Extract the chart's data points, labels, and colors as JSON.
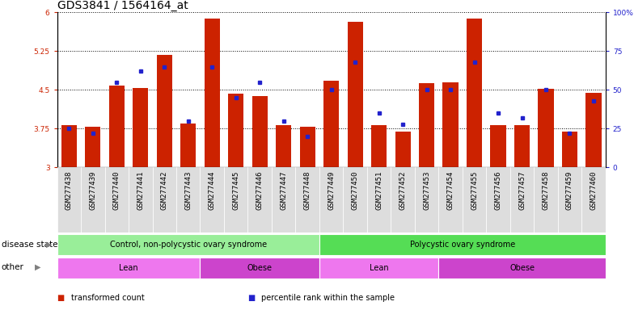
{
  "title": "GDS3841 / 1564164_at",
  "samples": [
    "GSM277438",
    "GSM277439",
    "GSM277440",
    "GSM277441",
    "GSM277442",
    "GSM277443",
    "GSM277444",
    "GSM277445",
    "GSM277446",
    "GSM277447",
    "GSM277448",
    "GSM277449",
    "GSM277450",
    "GSM277451",
    "GSM277452",
    "GSM277453",
    "GSM277454",
    "GSM277455",
    "GSM277456",
    "GSM277457",
    "GSM277458",
    "GSM277459",
    "GSM277460"
  ],
  "bar_values": [
    3.82,
    3.78,
    4.58,
    4.53,
    5.18,
    3.85,
    5.88,
    4.42,
    4.38,
    3.82,
    3.78,
    4.68,
    5.82,
    3.82,
    3.7,
    4.63,
    4.64,
    5.88,
    3.82,
    3.82,
    4.52,
    3.7,
    4.45
  ],
  "percentile_values": [
    25,
    22,
    55,
    62,
    65,
    30,
    65,
    45,
    55,
    30,
    20,
    50,
    68,
    35,
    28,
    50,
    50,
    68,
    35,
    32,
    50,
    22,
    43
  ],
  "ymin": 3.0,
  "ymax": 6.0,
  "yticks": [
    3.0,
    3.75,
    4.5,
    5.25,
    6.0
  ],
  "ytick_labels": [
    "3",
    "3.75",
    "4.5",
    "5.25",
    "6"
  ],
  "right_yticks": [
    0,
    25,
    50,
    75,
    100
  ],
  "right_ytick_labels": [
    "0",
    "25",
    "50",
    "75",
    "100%"
  ],
  "bar_color": "#CC2200",
  "percentile_color": "#2222CC",
  "bar_width": 0.65,
  "disease_state_groups": [
    {
      "label": "Control, non-polycystic ovary syndrome",
      "start": 0,
      "end": 10,
      "color": "#99EE99"
    },
    {
      "label": "Polycystic ovary syndrome",
      "start": 11,
      "end": 22,
      "color": "#55DD55"
    }
  ],
  "other_groups": [
    {
      "label": "Lean",
      "start": 0,
      "end": 5,
      "color": "#EE77EE"
    },
    {
      "label": "Obese",
      "start": 6,
      "end": 10,
      "color": "#CC44CC"
    },
    {
      "label": "Lean",
      "start": 11,
      "end": 15,
      "color": "#EE77EE"
    },
    {
      "label": "Obese",
      "start": 16,
      "end": 22,
      "color": "#CC44CC"
    }
  ],
  "disease_state_label": "disease state",
  "other_label": "other",
  "legend_items": [
    {
      "label": "transformed count",
      "color": "#CC2200"
    },
    {
      "label": "percentile rank within the sample",
      "color": "#2222CC"
    }
  ],
  "title_fontsize": 10,
  "tick_fontsize": 6.5,
  "group_fontsize": 7,
  "label_fontsize": 7.5,
  "xtick_bg": "#DDDDDD"
}
